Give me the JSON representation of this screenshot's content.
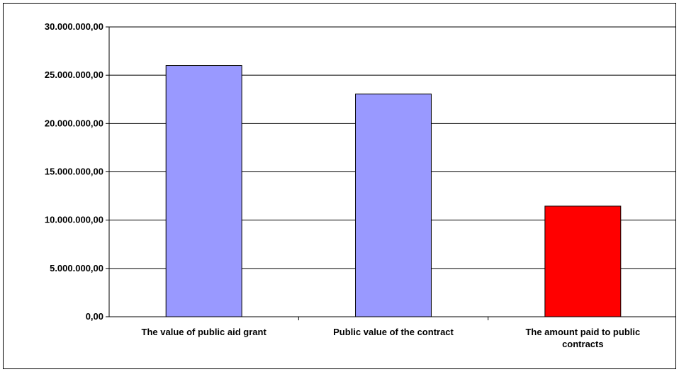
{
  "chart_data": {
    "type": "bar",
    "title": "",
    "xlabel": "",
    "ylabel": "",
    "categories": [
      [
        "The value of public aid grant"
      ],
      [
        "Public value of the contract"
      ],
      [
        "The amount paid to public",
        "contracts"
      ]
    ],
    "values": [
      26000000,
      23050000,
      11450000
    ],
    "bar_colors": [
      "#9999ff",
      "#9999ff",
      "#ff0000"
    ],
    "ylim": [
      0,
      30000000
    ],
    "ytick_step": 5000000,
    "yticks": [
      "0,00",
      "5.000.000,00",
      "10.000.000,00",
      "15.000.000,00",
      "20.000.000,00",
      "25.000.000,00",
      "30.000.000,00"
    ],
    "grid": true,
    "legend": "none"
  }
}
